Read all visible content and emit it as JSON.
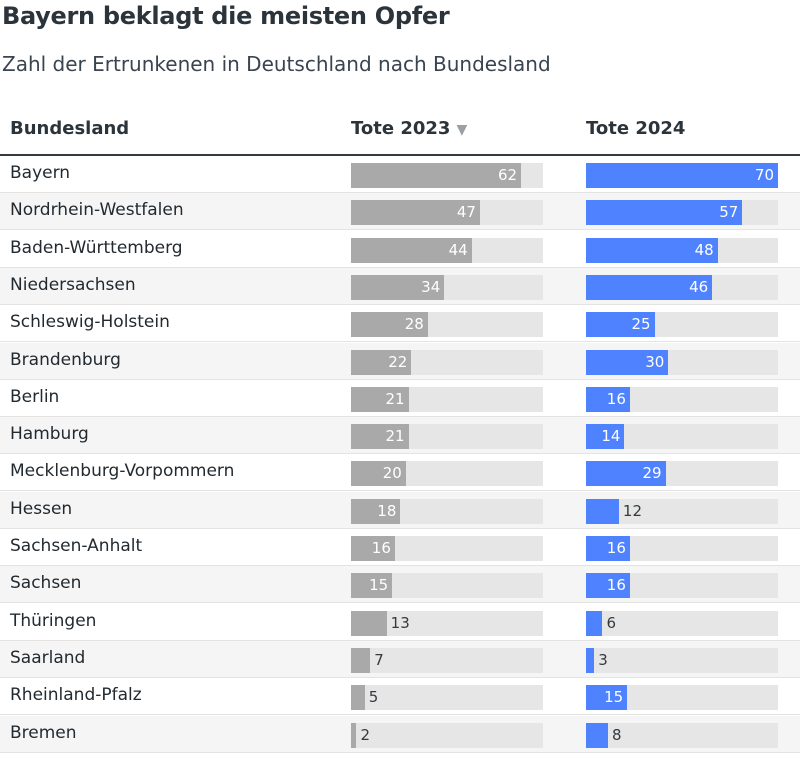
{
  "title": "Bayern beklagt die meisten Opfer",
  "subtitle": "Zahl der Ertrunkenen in Deutschland nach Bundesland",
  "headers": {
    "state": "Bundesland",
    "y2023": "Tote 2023",
    "sort_indicator": "▼",
    "y2024": "Tote 2024"
  },
  "colors": {
    "bar2023": "#a9a9a9",
    "bar2024": "#4f82ff",
    "track": "#e6e6e6"
  },
  "chart_data": {
    "type": "table",
    "sorted_by": "Tote 2023",
    "scale_max": 70,
    "columns": [
      "Bundesland",
      "Tote 2023",
      "Tote 2024"
    ],
    "rows": [
      {
        "state": "Bayern",
        "y2023": 62,
        "y2024": 70
      },
      {
        "state": "Nordrhein-Westfalen",
        "y2023": 47,
        "y2024": 57
      },
      {
        "state": "Baden-Württemberg",
        "y2023": 44,
        "y2024": 48
      },
      {
        "state": "Niedersachsen",
        "y2023": 34,
        "y2024": 46
      },
      {
        "state": "Schleswig-Holstein",
        "y2023": 28,
        "y2024": 25
      },
      {
        "state": "Brandenburg",
        "y2023": 22,
        "y2024": 30
      },
      {
        "state": "Berlin",
        "y2023": 21,
        "y2024": 16
      },
      {
        "state": "Hamburg",
        "y2023": 21,
        "y2024": 14
      },
      {
        "state": "Mecklenburg-Vorpommern",
        "y2023": 20,
        "y2024": 29
      },
      {
        "state": "Hessen",
        "y2023": 18,
        "y2024": 12
      },
      {
        "state": "Sachsen-Anhalt",
        "y2023": 16,
        "y2024": 16
      },
      {
        "state": "Sachsen",
        "y2023": 15,
        "y2024": 16
      },
      {
        "state": "Thüringen",
        "y2023": 13,
        "y2024": 6
      },
      {
        "state": "Saarland",
        "y2023": 7,
        "y2024": 3
      },
      {
        "state": "Rheinland-Pfalz",
        "y2023": 5,
        "y2024": 15
      },
      {
        "state": "Bremen",
        "y2023": 2,
        "y2024": 8
      }
    ]
  }
}
